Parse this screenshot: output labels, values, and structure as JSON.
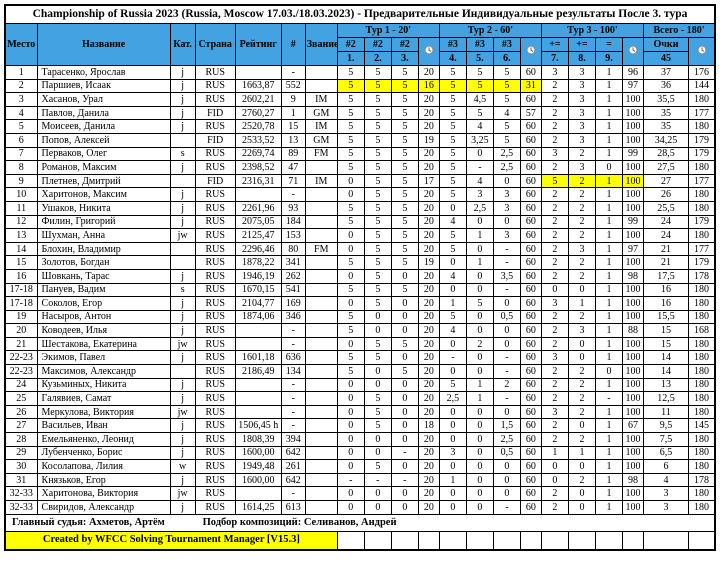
{
  "title": "Championship of Russia 2023 (Russia, Moscow 17.03./18.03.2023) - Предварительные Индивидуальные результаты После 3. тура",
  "colors": {
    "header_blue": "#42a2e2",
    "highlight_yellow": "#ffff00"
  },
  "columns": {
    "place": "Место",
    "name": "Название",
    "cat": "Кат.",
    "country": "Страна",
    "rating": "Рейтинг",
    "num": "#",
    "title": "Звание"
  },
  "rounds": [
    {
      "label": "Тур 1 - 20'",
      "problems": [
        "#2",
        "#2",
        "#2"
      ],
      "numbers": [
        "1.",
        "2.",
        "3."
      ],
      "time_icon": "clock-icon"
    },
    {
      "label": "Тур 2 - 60'",
      "problems": [
        "#3",
        "#3",
        "#3"
      ],
      "numbers": [
        "4.",
        "5.",
        "6."
      ],
      "time_icon": "clock-icon"
    },
    {
      "label": "Тур 3 - 100'",
      "problems": [
        "+=",
        "+=",
        "="
      ],
      "numbers": [
        "7.",
        "8.",
        "9."
      ],
      "time_icon": "clock-icon"
    }
  ],
  "total": {
    "label": "Всего - 180'",
    "points_label": "Очки",
    "points_max": "45",
    "time_icon": "clock-icon"
  },
  "rows": [
    {
      "place": "1",
      "name": "Тарасенко, Ярослав",
      "cat": "j",
      "country": "RUS",
      "rating": "",
      "num": "-",
      "title": "",
      "r1": [
        "5",
        "5",
        "5"
      ],
      "t1": "20",
      "r2": [
        "5",
        "5",
        "5"
      ],
      "t2": "60",
      "r3": [
        "3",
        "3",
        "1"
      ],
      "t3": "96",
      "pts": "37",
      "tt": "176",
      "hl": []
    },
    {
      "place": "2",
      "name": "Паршиев, Исаак",
      "cat": "j",
      "country": "RUS",
      "rating": "1663,87",
      "num": "552",
      "title": "",
      "r1": [
        "5",
        "5",
        "5"
      ],
      "t1": "16",
      "r2": [
        "5",
        "5",
        "5"
      ],
      "t2": "31",
      "r3": [
        "2",
        "3",
        "1"
      ],
      "t3": "97",
      "pts": "36",
      "tt": "144",
      "hl": [
        "r1",
        "t1",
        "r2",
        "t2"
      ]
    },
    {
      "place": "3",
      "name": "Хасанов, Урал",
      "cat": "j",
      "country": "RUS",
      "rating": "2602,21",
      "num": "9",
      "title": "IM",
      "r1": [
        "5",
        "5",
        "5"
      ],
      "t1": "20",
      "r2": [
        "5",
        "4,5",
        "5"
      ],
      "t2": "60",
      "r3": [
        "2",
        "3",
        "1"
      ],
      "t3": "100",
      "pts": "35,5",
      "tt": "180",
      "hl": []
    },
    {
      "place": "4",
      "name": "Павлов, Данила",
      "cat": "j",
      "country": "FID",
      "rating": "2760,27",
      "num": "1",
      "title": "GM",
      "r1": [
        "5",
        "5",
        "5"
      ],
      "t1": "20",
      "r2": [
        "5",
        "5",
        "4"
      ],
      "t2": "57",
      "r3": [
        "2",
        "3",
        "1"
      ],
      "t3": "100",
      "pts": "35",
      "tt": "177",
      "hl": []
    },
    {
      "place": "5",
      "name": "Моисеев, Данила",
      "cat": "j",
      "country": "RUS",
      "rating": "2520,78",
      "num": "15",
      "title": "IM",
      "r1": [
        "5",
        "5",
        "5"
      ],
      "t1": "20",
      "r2": [
        "5",
        "4",
        "5"
      ],
      "t2": "60",
      "r3": [
        "2",
        "3",
        "1"
      ],
      "t3": "100",
      "pts": "35",
      "tt": "180",
      "hl": []
    },
    {
      "place": "6",
      "name": "Попов, Алексей",
      "cat": "",
      "country": "FID",
      "rating": "2533,52",
      "num": "13",
      "title": "GM",
      "r1": [
        "5",
        "5",
        "5"
      ],
      "t1": "19",
      "r2": [
        "5",
        "3,25",
        "5"
      ],
      "t2": "60",
      "r3": [
        "2",
        "3",
        "1"
      ],
      "t3": "100",
      "pts": "34,25",
      "tt": "179",
      "hl": []
    },
    {
      "place": "7",
      "name": "Перваков, Олег",
      "cat": "s",
      "country": "RUS",
      "rating": "2269,74",
      "num": "89",
      "title": "FM",
      "r1": [
        "5",
        "5",
        "5"
      ],
      "t1": "20",
      "r2": [
        "5",
        "0",
        "2,5"
      ],
      "t2": "60",
      "r3": [
        "3",
        "2",
        "1"
      ],
      "t3": "99",
      "pts": "28,5",
      "tt": "179",
      "hl": []
    },
    {
      "place": "8",
      "name": "Романов, Максим",
      "cat": "j",
      "country": "RUS",
      "rating": "2398,52",
      "num": "47",
      "title": "",
      "r1": [
        "5",
        "5",
        "5"
      ],
      "t1": "20",
      "r2": [
        "5",
        "-",
        "2,5"
      ],
      "t2": "60",
      "r3": [
        "2",
        "3",
        "0"
      ],
      "t3": "100",
      "pts": "27,5",
      "tt": "180",
      "hl": []
    },
    {
      "place": "9",
      "name": "Плетнев, Дмитрий",
      "cat": "",
      "country": "FID",
      "rating": "2316,31",
      "num": "71",
      "title": "IM",
      "r1": [
        "0",
        "5",
        "5"
      ],
      "t1": "17",
      "r2": [
        "5",
        "4",
        "0"
      ],
      "t2": "60",
      "r3": [
        "5",
        "2",
        "1"
      ],
      "t3": "100",
      "pts": "27",
      "tt": "177",
      "hl": [
        "r3",
        "t3"
      ]
    },
    {
      "place": "10",
      "name": "Харитонов, Максим",
      "cat": "j",
      "country": "RUS",
      "rating": "",
      "num": "-",
      "title": "",
      "r1": [
        "0",
        "5",
        "5"
      ],
      "t1": "20",
      "r2": [
        "5",
        "3",
        "3"
      ],
      "t2": "60",
      "r3": [
        "2",
        "2",
        "1"
      ],
      "t3": "100",
      "pts": "26",
      "tt": "180",
      "hl": []
    },
    {
      "place": "11",
      "name": "Ушаков, Никита",
      "cat": "j",
      "country": "RUS",
      "rating": "2261,96",
      "num": "93",
      "title": "",
      "r1": [
        "5",
        "5",
        "5"
      ],
      "t1": "20",
      "r2": [
        "0",
        "2,5",
        "3"
      ],
      "t2": "60",
      "r3": [
        "2",
        "2",
        "1"
      ],
      "t3": "100",
      "pts": "25,5",
      "tt": "180",
      "hl": []
    },
    {
      "place": "12",
      "name": "Филин, Григорий",
      "cat": "j",
      "country": "RUS",
      "rating": "2075,05",
      "num": "184",
      "title": "",
      "r1": [
        "5",
        "5",
        "5"
      ],
      "t1": "20",
      "r2": [
        "4",
        "0",
        "0"
      ],
      "t2": "60",
      "r3": [
        "2",
        "2",
        "1"
      ],
      "t3": "99",
      "pts": "24",
      "tt": "179",
      "hl": []
    },
    {
      "place": "13",
      "name": "Шухман, Анна",
      "cat": "jw",
      "country": "RUS",
      "rating": "2125,47",
      "num": "153",
      "title": "",
      "r1": [
        "0",
        "5",
        "5"
      ],
      "t1": "20",
      "r2": [
        "5",
        "1",
        "3"
      ],
      "t2": "60",
      "r3": [
        "2",
        "2",
        "1"
      ],
      "t3": "100",
      "pts": "24",
      "tt": "180",
      "hl": []
    },
    {
      "place": "14",
      "name": "Блохин, Владимир",
      "cat": "",
      "country": "RUS",
      "rating": "2296,46",
      "num": "80",
      "title": "FM",
      "r1": [
        "0",
        "5",
        "5"
      ],
      "t1": "20",
      "r2": [
        "5",
        "0",
        "-"
      ],
      "t2": "60",
      "r3": [
        "2",
        "3",
        "1"
      ],
      "t3": "97",
      "pts": "21",
      "tt": "177",
      "hl": []
    },
    {
      "place": "15",
      "name": "Золотов, Богдан",
      "cat": "",
      "country": "RUS",
      "rating": "1878,22",
      "num": "341",
      "title": "",
      "r1": [
        "5",
        "5",
        "5"
      ],
      "t1": "19",
      "r2": [
        "0",
        "1",
        "-"
      ],
      "t2": "60",
      "r3": [
        "2",
        "2",
        "1"
      ],
      "t3": "100",
      "pts": "21",
      "tt": "179",
      "hl": []
    },
    {
      "place": "16",
      "name": "Шовкань, Тарас",
      "cat": "j",
      "country": "RUS",
      "rating": "1946,19",
      "num": "262",
      "title": "",
      "r1": [
        "0",
        "5",
        "0"
      ],
      "t1": "20",
      "r2": [
        "4",
        "0",
        "3,5"
      ],
      "t2": "60",
      "r3": [
        "2",
        "2",
        "1"
      ],
      "t3": "98",
      "pts": "17,5",
      "tt": "178",
      "hl": []
    },
    {
      "place": "17-18",
      "name": "Пануев, Вадим",
      "cat": "s",
      "country": "RUS",
      "rating": "1670,15",
      "num": "541",
      "title": "",
      "r1": [
        "5",
        "5",
        "5"
      ],
      "t1": "20",
      "r2": [
        "0",
        "0",
        "-"
      ],
      "t2": "60",
      "r3": [
        "0",
        "0",
        "1"
      ],
      "t3": "100",
      "pts": "16",
      "tt": "180",
      "hl": []
    },
    {
      "place": "17-18",
      "name": "Соколов, Егор",
      "cat": "j",
      "country": "RUS",
      "rating": "2104,77",
      "num": "169",
      "title": "",
      "r1": [
        "0",
        "5",
        "0"
      ],
      "t1": "20",
      "r2": [
        "1",
        "5",
        "0"
      ],
      "t2": "60",
      "r3": [
        "3",
        "1",
        "1"
      ],
      "t3": "100",
      "pts": "16",
      "tt": "180",
      "hl": []
    },
    {
      "place": "19",
      "name": "Насыров, Антон",
      "cat": "j",
      "country": "RUS",
      "rating": "1874,06",
      "num": "346",
      "title": "",
      "r1": [
        "5",
        "0",
        "0"
      ],
      "t1": "20",
      "r2": [
        "5",
        "0",
        "0,5"
      ],
      "t2": "60",
      "r3": [
        "2",
        "2",
        "1"
      ],
      "t3": "100",
      "pts": "15,5",
      "tt": "180",
      "hl": []
    },
    {
      "place": "20",
      "name": "Ководеев, Илья",
      "cat": "j",
      "country": "RUS",
      "rating": "",
      "num": "-",
      "title": "",
      "r1": [
        "5",
        "0",
        "0"
      ],
      "t1": "20",
      "r2": [
        "4",
        "0",
        "0"
      ],
      "t2": "60",
      "r3": [
        "2",
        "3",
        "1"
      ],
      "t3": "88",
      "pts": "15",
      "tt": "168",
      "hl": []
    },
    {
      "place": "21",
      "name": "Шестакова, Екатерина",
      "cat": "jw",
      "country": "RUS",
      "rating": "",
      "num": "-",
      "title": "",
      "r1": [
        "0",
        "5",
        "5"
      ],
      "t1": "20",
      "r2": [
        "0",
        "2",
        "0"
      ],
      "t2": "60",
      "r3": [
        "2",
        "0",
        "1"
      ],
      "t3": "100",
      "pts": "15",
      "tt": "180",
      "hl": []
    },
    {
      "place": "22-23",
      "name": "Экимов, Павел",
      "cat": "j",
      "country": "RUS",
      "rating": "1601,18",
      "num": "636",
      "title": "",
      "r1": [
        "5",
        "5",
        "0"
      ],
      "t1": "20",
      "r2": [
        "-",
        "0",
        "-"
      ],
      "t2": "60",
      "r3": [
        "3",
        "0",
        "1"
      ],
      "t3": "100",
      "pts": "14",
      "tt": "180",
      "hl": []
    },
    {
      "place": "22-23",
      "name": "Максимов, Александр",
      "cat": "",
      "country": "RUS",
      "rating": "2186,49",
      "num": "134",
      "title": "",
      "r1": [
        "5",
        "0",
        "5"
      ],
      "t1": "20",
      "r2": [
        "0",
        "0",
        "-"
      ],
      "t2": "60",
      "r3": [
        "2",
        "2",
        "0"
      ],
      "t3": "100",
      "pts": "14",
      "tt": "180",
      "hl": []
    },
    {
      "place": "24",
      "name": "Кузьминых, Никита",
      "cat": "j",
      "country": "RUS",
      "rating": "",
      "num": "-",
      "title": "",
      "r1": [
        "0",
        "0",
        "0"
      ],
      "t1": "20",
      "r2": [
        "5",
        "1",
        "2"
      ],
      "t2": "60",
      "r3": [
        "2",
        "2",
        "1"
      ],
      "t3": "100",
      "pts": "13",
      "tt": "180",
      "hl": []
    },
    {
      "place": "25",
      "name": "Галявиев, Самат",
      "cat": "j",
      "country": "RUS",
      "rating": "",
      "num": "-",
      "title": "",
      "r1": [
        "0",
        "5",
        "0"
      ],
      "t1": "20",
      "r2": [
        "2,5",
        "1",
        "-"
      ],
      "t2": "60",
      "r3": [
        "2",
        "2",
        "-"
      ],
      "t3": "100",
      "pts": "12,5",
      "tt": "180",
      "hl": []
    },
    {
      "place": "26",
      "name": "Меркулова, Виктория",
      "cat": "jw",
      "country": "RUS",
      "rating": "",
      "num": "-",
      "title": "",
      "r1": [
        "0",
        "5",
        "0"
      ],
      "t1": "20",
      "r2": [
        "0",
        "0",
        "0"
      ],
      "t2": "60",
      "r3": [
        "3",
        "2",
        "1"
      ],
      "t3": "100",
      "pts": "11",
      "tt": "180",
      "hl": []
    },
    {
      "place": "27",
      "name": "Васильев, Иван",
      "cat": "j",
      "country": "RUS",
      "rating": "1506,45 h",
      "num": "-",
      "title": "",
      "r1": [
        "0",
        "5",
        "0"
      ],
      "t1": "18",
      "r2": [
        "0",
        "0",
        "1,5"
      ],
      "t2": "60",
      "r3": [
        "2",
        "0",
        "1"
      ],
      "t3": "67",
      "pts": "9,5",
      "tt": "145",
      "hl": []
    },
    {
      "place": "28",
      "name": "Емельяненко, Леонид",
      "cat": "j",
      "country": "RUS",
      "rating": "1808,39",
      "num": "394",
      "title": "",
      "r1": [
        "0",
        "0",
        "0"
      ],
      "t1": "20",
      "r2": [
        "0",
        "0",
        "2,5"
      ],
      "t2": "60",
      "r3": [
        "2",
        "2",
        "1"
      ],
      "t3": "100",
      "pts": "7,5",
      "tt": "180",
      "hl": []
    },
    {
      "place": "29",
      "name": "Лубенченко, Борис",
      "cat": "j",
      "country": "RUS",
      "rating": "1600,00",
      "num": "642",
      "title": "",
      "r1": [
        "0",
        "0",
        "-"
      ],
      "t1": "20",
      "r2": [
        "3",
        "0",
        "0,5"
      ],
      "t2": "60",
      "r3": [
        "1",
        "1",
        "1"
      ],
      "t3": "100",
      "pts": "6,5",
      "tt": "180",
      "hl": []
    },
    {
      "place": "30",
      "name": "Косолапова, Лилия",
      "cat": "w",
      "country": "RUS",
      "rating": "1949,48",
      "num": "261",
      "title": "",
      "r1": [
        "0",
        "5",
        "0"
      ],
      "t1": "20",
      "r2": [
        "0",
        "0",
        "0"
      ],
      "t2": "60",
      "r3": [
        "0",
        "0",
        "1"
      ],
      "t3": "100",
      "pts": "6",
      "tt": "180",
      "hl": []
    },
    {
      "place": "31",
      "name": "Князьков, Егор",
      "cat": "j",
      "country": "RUS",
      "rating": "1600,00",
      "num": "642",
      "title": "",
      "r1": [
        "-",
        "-",
        "-"
      ],
      "t1": "20",
      "r2": [
        "1",
        "0",
        "0"
      ],
      "t2": "60",
      "r3": [
        "0",
        "2",
        "1"
      ],
      "t3": "98",
      "pts": "4",
      "tt": "178",
      "hl": []
    },
    {
      "place": "32-33",
      "name": "Харитонова, Виктория",
      "cat": "jw",
      "country": "RUS",
      "rating": "",
      "num": "-",
      "title": "",
      "r1": [
        "0",
        "0",
        "0"
      ],
      "t1": "20",
      "r2": [
        "0",
        "0",
        "0"
      ],
      "t2": "60",
      "r3": [
        "2",
        "0",
        "1"
      ],
      "t3": "100",
      "pts": "3",
      "tt": "180",
      "hl": []
    },
    {
      "place": "32-33",
      "name": "Свиридов, Александр",
      "cat": "j",
      "country": "RUS",
      "rating": "1614,25",
      "num": "613",
      "title": "",
      "r1": [
        "0",
        "0",
        "0"
      ],
      "t1": "20",
      "r2": [
        "0",
        "0",
        "-"
      ],
      "t2": "60",
      "r3": [
        "2",
        "0",
        "1"
      ],
      "t3": "100",
      "pts": "3",
      "tt": "180",
      "hl": []
    }
  ],
  "footer": {
    "judge": "Главный судья: Ахметов, Артём",
    "composer": "Подбор композиций: Селиванов, Андрей",
    "created": "Created by WFCC Solving Tournament Manager [V15.3]"
  }
}
